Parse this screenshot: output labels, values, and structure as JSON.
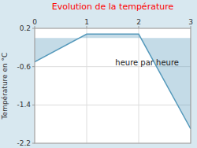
{
  "chart_data": {
    "type": "area",
    "title": "Evolution de la température",
    "ylabel": "Température en °C",
    "x": [
      0,
      1,
      2,
      3
    ],
    "values": [
      -0.5,
      0.08,
      0.08,
      -1.9
    ],
    "color": "#5599bb",
    "xlim": [
      0,
      3
    ],
    "ylim": [
      -2.2,
      0.2
    ],
    "xticks": [
      0,
      1,
      2,
      3
    ],
    "yticks": [
      0.2,
      -0.6,
      -1.4,
      -2.2
    ],
    "grid": true,
    "annotations": [
      {
        "text": "heure par heure",
        "x": 1.55,
        "y": -0.45
      }
    ]
  }
}
